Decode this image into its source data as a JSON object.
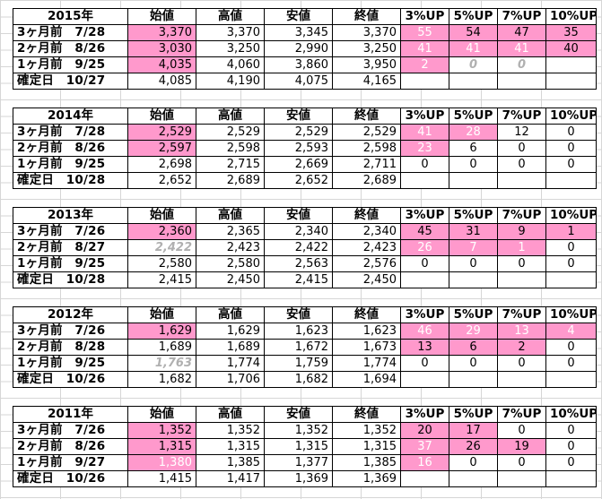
{
  "headers": [
    "始値",
    "高値",
    "安値",
    "終値",
    "3%UP",
    "5%UP",
    "7%UP",
    "10%UP"
  ],
  "tables": [
    {
      "year": "2015年",
      "rows": [
        {
          "label": "3ヶ月前　7/28",
          "v": [
            "3,370",
            "3,370",
            "3,345",
            "3,370"
          ],
          "p": [
            "55",
            "54",
            "47",
            "35"
          ]
        },
        {
          "label": "2ヶ月前　8/26",
          "v": [
            "3,030",
            "3,250",
            "2,990",
            "3,250"
          ],
          "p": [
            "41",
            "41",
            "41",
            "40"
          ]
        },
        {
          "label": "1ヶ月前　9/25",
          "v": [
            "4,035",
            "4,060",
            "3,860",
            "3,950"
          ],
          "p": [
            "2",
            "0",
            "0",
            ""
          ]
        },
        {
          "label": "確定日　10/27",
          "v": [
            "4,085",
            "4,190",
            "4,075",
            "4,165"
          ],
          "p": [
            "",
            "",
            "",
            ""
          ]
        }
      ]
    },
    {
      "year": "2014年",
      "rows": [
        {
          "label": "3ヶ月前　7/28",
          "v": [
            "2,529",
            "2,529",
            "2,529",
            "2,529"
          ],
          "p": [
            "41",
            "28",
            "12",
            "0"
          ]
        },
        {
          "label": "2ヶ月前　8/26",
          "v": [
            "2,597",
            "2,598",
            "2,593",
            "2,598"
          ],
          "p": [
            "23",
            "6",
            "0",
            "0"
          ]
        },
        {
          "label": "1ヶ月前　9/25",
          "v": [
            "2,698",
            "2,715",
            "2,669",
            "2,711"
          ],
          "p": [
            "0",
            "0",
            "0",
            "0"
          ]
        },
        {
          "label": "確定日　10/28",
          "v": [
            "2,652",
            "2,689",
            "2,652",
            "2,689"
          ],
          "p": [
            "",
            "",
            "",
            ""
          ]
        }
      ]
    },
    {
      "year": "2013年",
      "rows": [
        {
          "label": "3ヶ月前　7/26",
          "v": [
            "2,360",
            "2,365",
            "2,340",
            "2,340"
          ],
          "p": [
            "45",
            "31",
            "9",
            "1"
          ]
        },
        {
          "label": "2ヶ月前　8/27",
          "v": [
            "2,422",
            "2,423",
            "2,422",
            "2,423"
          ],
          "p": [
            "26",
            "7",
            "1",
            "0"
          ]
        },
        {
          "label": "1ヶ月前　9/25",
          "v": [
            "2,580",
            "2,580",
            "2,563",
            "2,576"
          ],
          "p": [
            "0",
            "0",
            "0",
            "0"
          ]
        },
        {
          "label": "確定日　10/28",
          "v": [
            "2,415",
            "2,450",
            "2,415",
            "2,450"
          ],
          "p": [
            "",
            "",
            "",
            ""
          ]
        }
      ]
    },
    {
      "year": "2012年",
      "rows": [
        {
          "label": "3ヶ月前　7/26",
          "v": [
            "1,629",
            "1,629",
            "1,623",
            "1,623"
          ],
          "p": [
            "46",
            "29",
            "13",
            "4"
          ]
        },
        {
          "label": "2ヶ月前　8/28",
          "v": [
            "1,689",
            "1,689",
            "1,672",
            "1,673"
          ],
          "p": [
            "13",
            "6",
            "2",
            "0"
          ]
        },
        {
          "label": "1ヶ月前　9/25",
          "v": [
            "1,763",
            "1,774",
            "1,759",
            "1,774"
          ],
          "p": [
            "0",
            "0",
            "0",
            "0"
          ]
        },
        {
          "label": "確定日　10/26",
          "v": [
            "1,682",
            "1,706",
            "1,682",
            "1,694"
          ],
          "p": [
            "",
            "",
            "",
            ""
          ]
        }
      ]
    },
    {
      "year": "2011年",
      "rows": [
        {
          "label": "3ヶ月前　7/26",
          "v": [
            "1,352",
            "1,352",
            "1,352",
            "1,352"
          ],
          "p": [
            "20",
            "17",
            "0",
            "0"
          ]
        },
        {
          "label": "2ヶ月前　8/26",
          "v": [
            "1,315",
            "1,315",
            "1,315",
            "1,315"
          ],
          "p": [
            "37",
            "26",
            "19",
            "0"
          ]
        },
        {
          "label": "1ヶ月前　9/27",
          "v": [
            "1,380",
            "1,385",
            "1,377",
            "1,385"
          ],
          "p": [
            "16",
            "0",
            "0",
            "0"
          ]
        },
        {
          "label": "確定日　10/26",
          "v": [
            "1,415",
            "1,417",
            "1,369",
            "1,369"
          ],
          "p": [
            "",
            "",
            "",
            ""
          ]
        }
      ]
    }
  ],
  "colors": {
    "highlight": "#ff99cc",
    "ghost": "#b0b0b0",
    "grid": "#d6d6d6"
  }
}
